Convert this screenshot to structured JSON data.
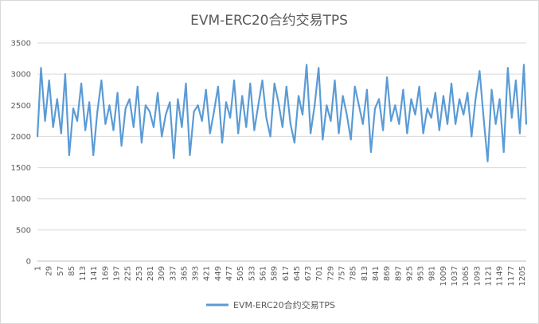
{
  "chart_data": {
    "type": "line",
    "title": "EVM-ERC20合约交易TPS",
    "xlabel": "",
    "ylabel": "",
    "ylim": [
      0,
      3500
    ],
    "y_ticks": [
      0,
      500,
      1000,
      1500,
      2000,
      2500,
      3000,
      3500
    ],
    "x_range": [
      1,
      1216
    ],
    "x_ticks": [
      1,
      29,
      57,
      85,
      113,
      141,
      169,
      197,
      225,
      253,
      281,
      309,
      337,
      365,
      393,
      421,
      449,
      477,
      505,
      533,
      561,
      589,
      617,
      645,
      673,
      701,
      729,
      757,
      785,
      813,
      841,
      869,
      897,
      925,
      953,
      981,
      1009,
      1037,
      1065,
      1093,
      1121,
      1149,
      1177,
      1205
    ],
    "grid": true,
    "legend_position": "bottom",
    "series": [
      {
        "name": "EVM-ERC20合约交易TPS",
        "color": "#5b9bd5",
        "x": [
          1,
          10,
          20,
          30,
          40,
          50,
          60,
          70,
          80,
          90,
          100,
          110,
          120,
          130,
          140,
          150,
          160,
          170,
          180,
          190,
          200,
          210,
          220,
          230,
          240,
          250,
          260,
          270,
          280,
          290,
          300,
          310,
          320,
          330,
          340,
          350,
          360,
          370,
          380,
          390,
          400,
          410,
          420,
          430,
          440,
          450,
          460,
          470,
          480,
          490,
          500,
          510,
          520,
          530,
          540,
          550,
          560,
          570,
          580,
          590,
          600,
          610,
          620,
          630,
          640,
          650,
          660,
          670,
          680,
          690,
          700,
          710,
          720,
          730,
          740,
          750,
          760,
          770,
          780,
          790,
          800,
          810,
          820,
          830,
          840,
          850,
          860,
          870,
          880,
          890,
          900,
          910,
          920,
          930,
          940,
          950,
          960,
          970,
          980,
          990,
          1000,
          1010,
          1020,
          1030,
          1040,
          1050,
          1060,
          1070,
          1080,
          1090,
          1100,
          1110,
          1120,
          1130,
          1140,
          1150,
          1160,
          1170,
          1180,
          1190,
          1200,
          1210,
          1216
        ],
        "values": [
          2000,
          3100,
          2250,
          2900,
          2150,
          2600,
          2050,
          3000,
          1700,
          2450,
          2250,
          2850,
          2100,
          2550,
          1700,
          2400,
          2900,
          2200,
          2500,
          2100,
          2700,
          1850,
          2450,
          2600,
          2150,
          2800,
          1900,
          2500,
          2400,
          2150,
          2700,
          2000,
          2350,
          2550,
          1650,
          2600,
          2150,
          2850,
          1700,
          2400,
          2500,
          2250,
          2750,
          2050,
          2400,
          2800,
          1900,
          2550,
          2300,
          2900,
          2050,
          2650,
          2150,
          2850,
          2100,
          2500,
          2900,
          2300,
          2000,
          2850,
          2550,
          2150,
          2800,
          2200,
          1900,
          2650,
          2350,
          3150,
          2050,
          2500,
          3100,
          1950,
          2500,
          2250,
          2900,
          2050,
          2650,
          2350,
          1950,
          2800,
          2500,
          2200,
          2750,
          1750,
          2450,
          2600,
          2100,
          2950,
          2250,
          2500,
          2200,
          2750,
          2050,
          2600,
          2350,
          2800,
          2050,
          2450,
          2300,
          2700,
          2100,
          2650,
          2200,
          2850,
          2200,
          2600,
          2350,
          2700,
          2000,
          2600,
          3050,
          2300,
          1600,
          2750,
          2200,
          2600,
          1750,
          3100,
          2300,
          2900,
          2050,
          3150,
          2200
        ]
      }
    ]
  }
}
